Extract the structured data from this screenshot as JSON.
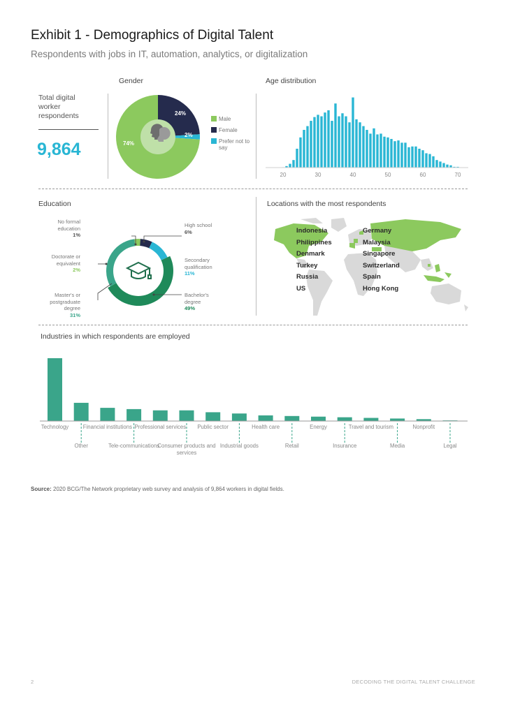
{
  "title": "Exhibit 1 - Demographics of Digital Talent",
  "subtitle": "Respondents with jobs in IT, automation, analytics, or digitalization",
  "total": {
    "label": "Total digital worker respondents",
    "value": "9,864"
  },
  "gender": {
    "title": "Gender",
    "slices": [
      {
        "label": "Male",
        "value": 74,
        "pct_label": "74%",
        "color": "#8cc95e"
      },
      {
        "label": "Female",
        "value": 24,
        "pct_label": "24%",
        "color": "#252b4d"
      },
      {
        "label": "Prefer not to say",
        "value": 2,
        "pct_label": "2%",
        "color": "#29b6d4"
      }
    ],
    "icon": "two-heads-icon"
  },
  "age": {
    "title": "Age distribution",
    "ticks": [
      "20",
      "30",
      "40",
      "50",
      "60",
      "70"
    ],
    "color": "#29b6d4"
  },
  "education": {
    "title": "Education",
    "icon": "graduation-cap-icon",
    "categories": [
      {
        "label": "No formal education",
        "pct_label": "1%",
        "value": 1,
        "color": "#8cc95e"
      },
      {
        "label": "High school",
        "pct_label": "6%",
        "value": 6,
        "color": "#252b4d"
      },
      {
        "label": "Secondary qualification",
        "pct_label": "11%",
        "value": 11,
        "color": "#29b6d4"
      },
      {
        "label": "Bachelor's degree",
        "pct_label": "49%",
        "value": 49,
        "color": "#1f8a5a"
      },
      {
        "label": "Master's or postgraduate degree",
        "pct_label": "31%",
        "value": 31,
        "color": "#3aa58a"
      },
      {
        "label": "Doctorate or equivalent",
        "pct_label": "2%",
        "value": 2,
        "color": "#8cc95e"
      }
    ]
  },
  "locations": {
    "title": "Locations with the most respondents",
    "col1": [
      "Indonesia",
      "Philippines",
      "Denmark",
      "Turkey",
      "Russia",
      "US"
    ],
    "col2": [
      "Germany",
      "Malaysia",
      "Singapore",
      "Switzerland",
      "Spain",
      "Hong Kong"
    ],
    "highlight_color": "#8cc95e",
    "base_color": "#d9d9d9"
  },
  "industries": {
    "title": "Industries in which respondents are employed"
  },
  "chart_data": [
    {
      "type": "pie",
      "title": "Gender",
      "categories": [
        "Male",
        "Female",
        "Prefer not to say"
      ],
      "values": [
        74,
        24,
        2
      ]
    },
    {
      "type": "bar",
      "title": "Age distribution",
      "x": [
        17,
        18,
        19,
        20,
        21,
        22,
        23,
        24,
        25,
        26,
        27,
        28,
        29,
        30,
        31,
        32,
        33,
        34,
        35,
        36,
        37,
        38,
        39,
        40,
        41,
        42,
        43,
        44,
        45,
        46,
        47,
        48,
        49,
        50,
        51,
        52,
        53,
        54,
        55,
        56,
        57,
        58,
        59,
        60,
        61,
        62,
        63,
        64,
        65,
        66,
        67,
        68,
        69,
        70
      ],
      "values": [
        0,
        0,
        0,
        0.5,
        2,
        5,
        10,
        25,
        40,
        50,
        55,
        62,
        67,
        70,
        68,
        73,
        76,
        62,
        85,
        68,
        72,
        68,
        60,
        93,
        64,
        60,
        55,
        50,
        45,
        52,
        44,
        45,
        41,
        40,
        38,
        35,
        36,
        33,
        33,
        27,
        28,
        28,
        25,
        23,
        19,
        18,
        15,
        10,
        8,
        6,
        4,
        3,
        1,
        1
      ],
      "xlim": [
        15,
        73
      ],
      "ticks": [
        20,
        30,
        40,
        50,
        60,
        70
      ]
    },
    {
      "type": "pie",
      "title": "Education",
      "categories": [
        "No formal education",
        "High school",
        "Secondary qualification",
        "Bachelor's degree",
        "Master's or postgraduate degree",
        "Doctorate or equivalent"
      ],
      "values": [
        1,
        6,
        11,
        49,
        31,
        2
      ]
    },
    {
      "type": "bar",
      "title": "Industries in which respondents are employed",
      "categories": [
        "Technology",
        "Other",
        "Financial institutions",
        "Tele-communications",
        "Professional services",
        "Consumer products and services",
        "Public sector",
        "Industrial goods",
        "Health care",
        "Retail",
        "Energy",
        "Insurance",
        "Travel and tourism",
        "Media",
        "Nonprofit",
        "Legal"
      ],
      "values": [
        100,
        29,
        21,
        19,
        17,
        17,
        14,
        12,
        9,
        8,
        7,
        6,
        5,
        4,
        3,
        1
      ],
      "color": "#3aa58a"
    }
  ],
  "source": {
    "label": "Source:",
    "text": "2020 BCG/The Network proprietary web survey and analysis of 9,864 workers in digital fields."
  },
  "footer": {
    "page": "2",
    "text": "DECODING THE DIGITAL TALENT CHALLENGE"
  }
}
